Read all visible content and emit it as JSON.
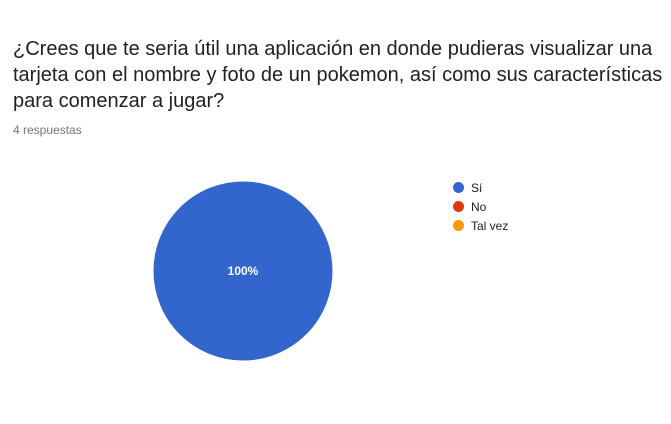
{
  "question": "¿Crees que te seria útil una aplicación en donde pudieras visualizar una tarjeta con el nombre y foto de un pokemon, así como sus características para comenzar a jugar?",
  "responses_label": "4 respuestas",
  "chart_data": {
    "type": "pie",
    "title": "",
    "legend_position": "right",
    "categories": [
      "Sí",
      "No",
      "Tal vez"
    ],
    "values": [
      4,
      0,
      0
    ],
    "percent_labels": [
      "100%",
      "",
      ""
    ],
    "colors": [
      "#3366cc",
      "#dc3912",
      "#ff9900"
    ],
    "label_color": "#ffffff"
  }
}
